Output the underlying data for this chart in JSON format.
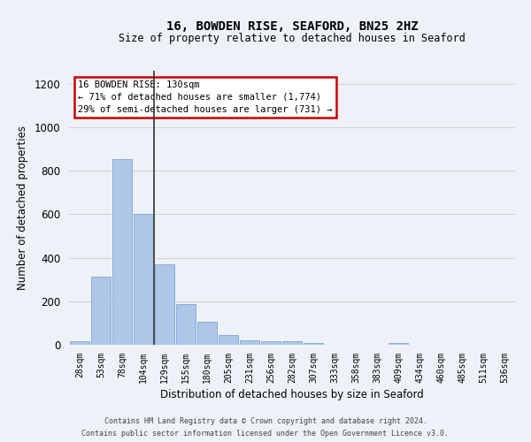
{
  "title1": "16, BOWDEN RISE, SEAFORD, BN25 2HZ",
  "title2": "Size of property relative to detached houses in Seaford",
  "xlabel": "Distribution of detached houses by size in Seaford",
  "ylabel": "Number of detached properties",
  "categories": [
    "28sqm",
    "53sqm",
    "78sqm",
    "104sqm",
    "129sqm",
    "155sqm",
    "180sqm",
    "205sqm",
    "231sqm",
    "256sqm",
    "282sqm",
    "307sqm",
    "333sqm",
    "358sqm",
    "383sqm",
    "409sqm",
    "434sqm",
    "460sqm",
    "485sqm",
    "511sqm",
    "536sqm"
  ],
  "values": [
    15,
    315,
    855,
    600,
    370,
    185,
    105,
    45,
    20,
    18,
    18,
    8,
    0,
    0,
    0,
    10,
    0,
    0,
    0,
    0,
    0
  ],
  "bar_color": "#aec6e8",
  "bar_edge_color": "#7aa8d0",
  "annotation_title": "16 BOWDEN RISE: 130sqm",
  "annotation_line1": "← 71% of detached houses are smaller (1,774)",
  "annotation_line2": "29% of semi-detached houses are larger (731) →",
  "annotation_box_color": "#ffffff",
  "annotation_box_edge_color": "#cc0000",
  "vline_color": "#333333",
  "ylim": [
    0,
    1260
  ],
  "yticks": [
    0,
    200,
    400,
    600,
    800,
    1000,
    1200
  ],
  "grid_color": "#d0d0d0",
  "footer1": "Contains HM Land Registry data © Crown copyright and database right 2024.",
  "footer2": "Contains public sector information licensed under the Open Government Licence v3.0.",
  "bg_color": "#eef2f8"
}
